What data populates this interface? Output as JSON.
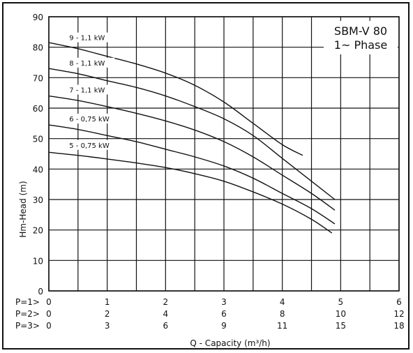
{
  "chart_data": {
    "type": "line",
    "title_lines": [
      "SBM-V 80",
      "1~ Phase"
    ],
    "ylabel": "Hm-Head (m)",
    "xlabel": "Q - Capacity (m³/h)",
    "ylim": [
      0,
      90
    ],
    "yticks": [
      0,
      10,
      20,
      30,
      40,
      50,
      60,
      70,
      80,
      90
    ],
    "xlim": [
      0,
      6
    ],
    "x_scales": [
      {
        "label": "P=1>",
        "ticks": [
          "0",
          "1",
          "2",
          "3",
          "4",
          "5",
          "6"
        ]
      },
      {
        "label": "P=2>",
        "ticks": [
          "0",
          "2",
          "4",
          "6",
          "8",
          "10",
          "12"
        ]
      },
      {
        "label": "P=3>",
        "ticks": [
          "0",
          "3",
          "6",
          "9",
          "11",
          "15",
          "18"
        ]
      }
    ],
    "grid": true,
    "series": [
      {
        "name": "9 - 1,1 kW",
        "x": [
          0,
          0.5,
          1,
          1.5,
          2,
          2.5,
          3,
          3.5,
          4,
          4.35
        ],
        "y": [
          81.5,
          79.5,
          77,
          74.5,
          71.5,
          67.5,
          62,
          55,
          48,
          44.5
        ]
      },
      {
        "name": "8 - 1,1 kW",
        "x": [
          0,
          0.5,
          1,
          1.5,
          2,
          2.5,
          3,
          3.5,
          4,
          4.5,
          4.9
        ],
        "y": [
          73,
          71.3,
          69,
          66.8,
          64,
          60.5,
          56.5,
          51,
          43.5,
          36,
          30
        ]
      },
      {
        "name": "7 - 1,1 kW",
        "x": [
          0,
          0.5,
          1,
          1.5,
          2,
          2.5,
          3,
          3.5,
          4,
          4.5,
          4.9
        ],
        "y": [
          64,
          62.5,
          60.5,
          58.3,
          55.8,
          52.8,
          49,
          44,
          38,
          32,
          26.5
        ]
      },
      {
        "name": "6 - 0,75 kW",
        "x": [
          0,
          0.5,
          1,
          1.5,
          2,
          2.5,
          3,
          3.5,
          4,
          4.5,
          4.9
        ],
        "y": [
          54.5,
          53,
          51,
          49,
          46.5,
          44,
          41,
          37,
          32,
          27,
          22
        ]
      },
      {
        "name": "5 - 0,75 kW",
        "x": [
          0,
          0.5,
          1,
          1.5,
          2,
          2.5,
          3,
          3.5,
          4,
          4.5,
          4.85
        ],
        "y": [
          45.5,
          44.5,
          43.3,
          42,
          40.5,
          38.5,
          36,
          32.5,
          28.5,
          23.5,
          19
        ]
      }
    ]
  }
}
